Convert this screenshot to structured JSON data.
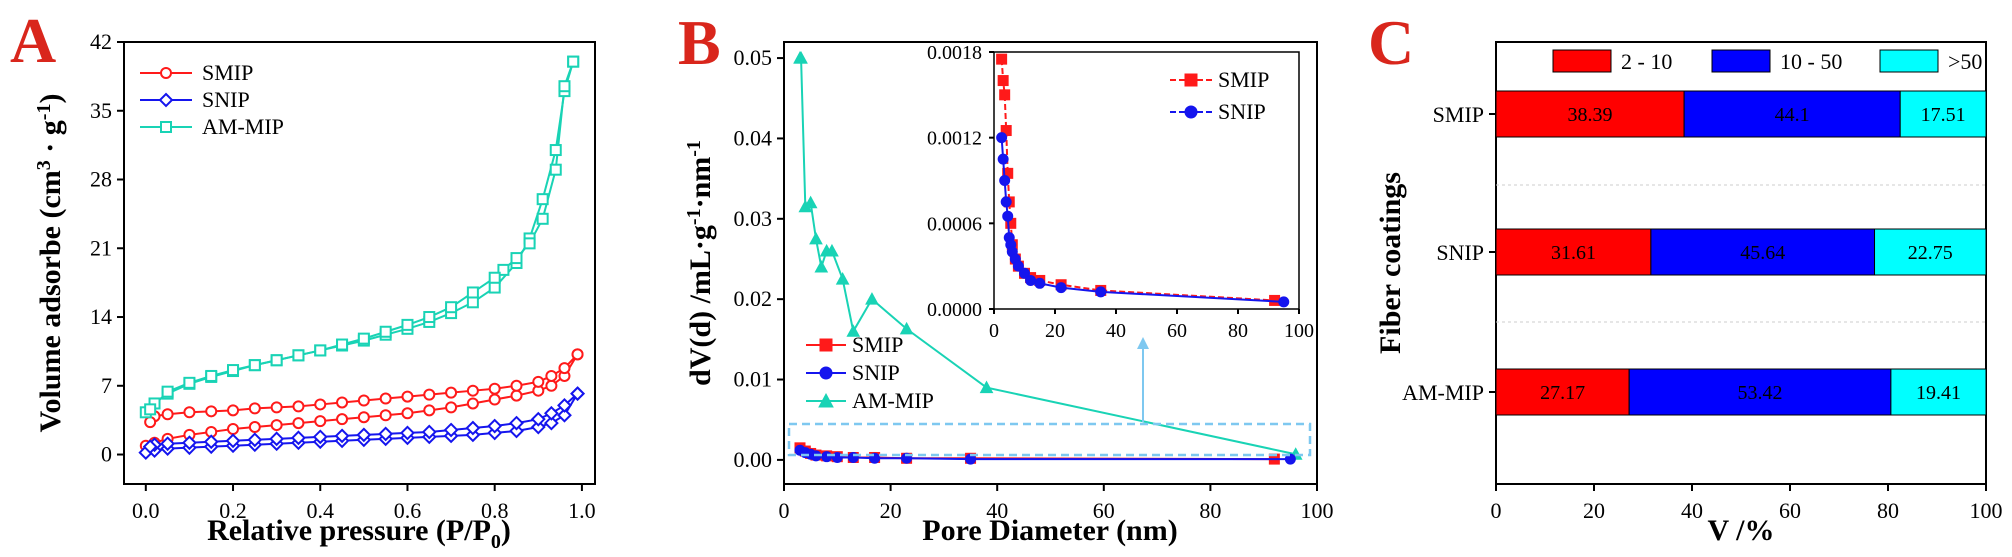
{
  "panels": {
    "a": "A",
    "b": "B",
    "c": "C"
  },
  "colors": {
    "smip": "#ff1a1a",
    "snip": "#1515ee",
    "ammip": "#19d3b5",
    "bar_red": "#ff0000",
    "bar_blue": "#0000ff",
    "bar_cyan": "#00ffff",
    "dash_box": "#7ec8f0"
  },
  "chart_data": [
    {
      "type": "line",
      "panel": "A",
      "xlabel": "Relative pressure (P/P0)",
      "ylabel": "Volume adsorbe (cm3 · g-1)",
      "xlim": [
        -0.05,
        1.03
      ],
      "ylim": [
        -3,
        42
      ],
      "xticks": [
        "0.0",
        "0.2",
        "0.4",
        "0.6",
        "0.8",
        "1.0"
      ],
      "yticks": [
        "0",
        "7",
        "14",
        "21",
        "28",
        "35",
        "42"
      ],
      "series": [
        {
          "name": "SMIP",
          "adsorption_x": [
            0.0,
            0.02,
            0.05,
            0.1,
            0.15,
            0.2,
            0.25,
            0.3,
            0.35,
            0.4,
            0.45,
            0.5,
            0.55,
            0.6,
            0.65,
            0.7,
            0.75,
            0.8,
            0.85,
            0.9,
            0.93,
            0.96,
            0.99
          ],
          "adsorption_y": [
            0.9,
            1.2,
            1.6,
            2.0,
            2.3,
            2.6,
            2.8,
            3.0,
            3.2,
            3.4,
            3.6,
            3.8,
            4.0,
            4.2,
            4.5,
            4.8,
            5.2,
            5.6,
            6.0,
            6.5,
            7.0,
            8.0,
            10.2
          ],
          "desorption_x": [
            0.99,
            0.96,
            0.93,
            0.9,
            0.85,
            0.8,
            0.75,
            0.7,
            0.65,
            0.6,
            0.55,
            0.5,
            0.45,
            0.4,
            0.35,
            0.3,
            0.25,
            0.2,
            0.15,
            0.1,
            0.05,
            0.02,
            0.01
          ],
          "desorption_y": [
            10.2,
            8.8,
            8.0,
            7.4,
            7.0,
            6.7,
            6.5,
            6.3,
            6.1,
            5.9,
            5.7,
            5.5,
            5.3,
            5.1,
            4.9,
            4.8,
            4.7,
            4.5,
            4.4,
            4.3,
            4.1,
            3.9,
            3.3
          ]
        },
        {
          "name": "SNIP",
          "adsorption_x": [
            0.0,
            0.02,
            0.05,
            0.1,
            0.15,
            0.2,
            0.25,
            0.3,
            0.35,
            0.4,
            0.45,
            0.5,
            0.55,
            0.6,
            0.65,
            0.7,
            0.75,
            0.8,
            0.85,
            0.9,
            0.93,
            0.96,
            0.99
          ],
          "adsorption_y": [
            0.2,
            0.4,
            0.6,
            0.7,
            0.8,
            0.9,
            1.0,
            1.1,
            1.2,
            1.3,
            1.4,
            1.5,
            1.6,
            1.7,
            1.8,
            1.9,
            2.0,
            2.2,
            2.4,
            2.8,
            3.2,
            4.0,
            6.2
          ],
          "desorption_x": [
            0.99,
            0.96,
            0.93,
            0.9,
            0.85,
            0.8,
            0.75,
            0.7,
            0.65,
            0.6,
            0.55,
            0.5,
            0.45,
            0.4,
            0.35,
            0.3,
            0.25,
            0.2,
            0.15,
            0.1,
            0.05,
            0.02,
            0.01
          ],
          "desorption_y": [
            6.2,
            5.0,
            4.2,
            3.6,
            3.2,
            2.9,
            2.7,
            2.5,
            2.3,
            2.2,
            2.1,
            2.0,
            1.9,
            1.8,
            1.7,
            1.6,
            1.5,
            1.4,
            1.3,
            1.2,
            1.1,
            1.0,
            0.8
          ]
        },
        {
          "name": "AM-MIP",
          "adsorption_x": [
            0.0,
            0.02,
            0.05,
            0.1,
            0.15,
            0.2,
            0.25,
            0.3,
            0.35,
            0.4,
            0.45,
            0.5,
            0.55,
            0.6,
            0.65,
            0.7,
            0.75,
            0.8,
            0.85,
            0.88,
            0.91,
            0.94,
            0.96,
            0.98
          ],
          "adsorption_y": [
            4.3,
            5.2,
            6.2,
            7.2,
            7.9,
            8.5,
            9.1,
            9.6,
            10.1,
            10.6,
            11.1,
            11.6,
            12.2,
            12.8,
            13.5,
            14.4,
            15.5,
            17.0,
            19.5,
            22.0,
            26.0,
            31.0,
            37.0,
            40.0
          ],
          "desorption_x": [
            0.98,
            0.96,
            0.94,
            0.91,
            0.88,
            0.85,
            0.82,
            0.8,
            0.75,
            0.7,
            0.65,
            0.6,
            0.55,
            0.5,
            0.45,
            0.4,
            0.35,
            0.3,
            0.25,
            0.2,
            0.15,
            0.1,
            0.05,
            0.01
          ],
          "desorption_y": [
            40.0,
            37.5,
            29.0,
            24.0,
            21.5,
            20.0,
            18.8,
            18.0,
            16.5,
            15.0,
            14.0,
            13.2,
            12.5,
            11.8,
            11.2,
            10.6,
            10.1,
            9.6,
            9.1,
            8.6,
            8.0,
            7.3,
            6.4,
            4.6
          ]
        }
      ]
    },
    {
      "type": "line",
      "panel": "B",
      "xlabel": "Pore Diameter (nm)",
      "ylabel": "dV(d) /mL·g-1·nm-1",
      "xlim": [
        0,
        100
      ],
      "ylim": [
        -0.003,
        0.052
      ],
      "xticks": [
        "0",
        "20",
        "40",
        "60",
        "80",
        "100"
      ],
      "yticks": [
        "0.00",
        "0.01",
        "0.02",
        "0.03",
        "0.04",
        "0.05"
      ],
      "series": [
        {
          "name": "SMIP",
          "x": [
            3,
            4,
            5,
            6,
            8,
            10,
            13,
            17,
            23,
            35,
            92
          ],
          "y": [
            0.0015,
            0.0011,
            0.0008,
            0.0006,
            0.0005,
            0.0004,
            0.0003,
            0.0003,
            0.0002,
            0.0002,
            0.0001
          ]
        },
        {
          "name": "SNIP",
          "x": [
            3,
            4,
            5,
            6,
            8,
            10,
            13,
            17,
            23,
            35,
            95
          ],
          "y": [
            0.0012,
            0.0009,
            0.0007,
            0.0005,
            0.0004,
            0.0003,
            0.0003,
            0.0002,
            0.0002,
            0.0001,
            0.0001
          ]
        },
        {
          "name": "AM-MIP",
          "x": [
            3,
            3.2,
            4,
            5,
            6,
            7,
            8,
            9,
            11,
            13,
            16.5,
            23,
            38,
            96
          ],
          "y": [
            0.05,
            0.05,
            0.0315,
            0.032,
            0.0275,
            0.024,
            0.026,
            0.026,
            0.0225,
            0.016,
            0.02,
            0.0163,
            0.009,
            0.0007
          ]
        }
      ],
      "inset": {
        "xlim": [
          0,
          100
        ],
        "ylim": [
          0,
          0.0018
        ],
        "xticks": [
          "0",
          "20",
          "40",
          "60",
          "80",
          "100"
        ],
        "yticks": [
          "0.0000",
          "0.0006",
          "0.0012",
          "0.0018"
        ],
        "series": [
          {
            "name": "SMIP",
            "x": [
              2.5,
              3,
              3.5,
              4,
              4.5,
              5,
              5.5,
              6,
              7,
              8,
              10,
              12,
              15,
              22,
              35,
              92
            ],
            "y": [
              0.00175,
              0.0016,
              0.0015,
              0.00125,
              0.00095,
              0.00075,
              0.0006,
              0.00045,
              0.00035,
              0.0003,
              0.00025,
              0.00022,
              0.0002,
              0.00017,
              0.00013,
              6e-05
            ]
          },
          {
            "name": "SNIP",
            "x": [
              2.5,
              3,
              3.5,
              4,
              4.5,
              5,
              5.5,
              6,
              7,
              8,
              10,
              12,
              15,
              22,
              35,
              95
            ],
            "y": [
              0.0012,
              0.00105,
              0.0009,
              0.00075,
              0.00065,
              0.0005,
              0.00045,
              0.0004,
              0.00035,
              0.0003,
              0.00025,
              0.0002,
              0.00018,
              0.00015,
              0.00012,
              5e-05
            ]
          }
        ]
      }
    },
    {
      "type": "bar",
      "orientation": "horizontal-stacked",
      "panel": "C",
      "xlabel": "V /%",
      "ylabel": "Fiber coatings",
      "xlim": [
        0,
        100
      ],
      "xticks": [
        "0",
        "20",
        "40",
        "60",
        "80",
        "100"
      ],
      "categories": [
        "SMIP",
        "SNIP",
        "AM-MIP"
      ],
      "series": [
        {
          "name": "2 - 10",
          "values": [
            38.39,
            31.61,
            27.17
          ]
        },
        {
          "name": "10 - 50",
          "values": [
            44.1,
            45.64,
            53.42
          ]
        },
        {
          "name": ">50",
          "values": [
            17.51,
            22.75,
            19.41
          ]
        }
      ]
    }
  ]
}
